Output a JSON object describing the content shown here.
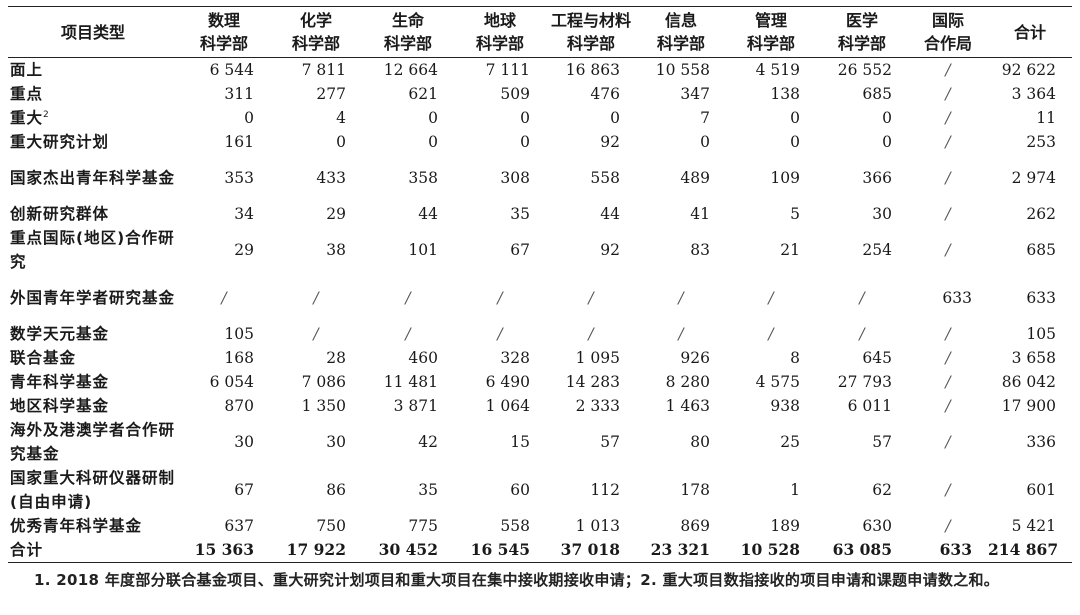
{
  "table": {
    "headers": [
      {
        "line1": "项目类型",
        "line2": ""
      },
      {
        "line1": "数理",
        "line2": "科学部"
      },
      {
        "line1": "化学",
        "line2": "科学部"
      },
      {
        "line1": "生命",
        "line2": "科学部"
      },
      {
        "line1": "地球",
        "line2": "科学部"
      },
      {
        "line1": "工程与材料",
        "line2": "科学部"
      },
      {
        "line1": "信息",
        "line2": "科学部"
      },
      {
        "line1": "管理",
        "line2": "科学部"
      },
      {
        "line1": "医学",
        "line2": "科学部"
      },
      {
        "line1": "国际",
        "line2": "合作局"
      },
      {
        "line1": "合计",
        "line2": ""
      }
    ],
    "rows": [
      {
        "name": "面上",
        "sup": "",
        "tall": false,
        "values": [
          "6 544",
          "7 811",
          "12 664",
          "7 111",
          "16 863",
          "10 558",
          "4 519",
          "26 552",
          "/",
          "92 622"
        ]
      },
      {
        "name": "重点",
        "sup": "",
        "tall": false,
        "values": [
          "311",
          "277",
          "621",
          "509",
          "476",
          "347",
          "138",
          "685",
          "/",
          "3 364"
        ]
      },
      {
        "name": "重大",
        "sup": "2",
        "tall": false,
        "values": [
          "0",
          "4",
          "0",
          "0",
          "0",
          "7",
          "0",
          "0",
          "/",
          "11"
        ]
      },
      {
        "name": "重大研究计划",
        "sup": "",
        "tall": false,
        "values": [
          "161",
          "0",
          "0",
          "0",
          "92",
          "0",
          "0",
          "0",
          "/",
          "253"
        ]
      },
      {
        "name": "国家杰出青年科学基金",
        "sup": "",
        "tall": true,
        "values": [
          "353",
          "433",
          "358",
          "308",
          "558",
          "489",
          "109",
          "366",
          "/",
          "2 974"
        ]
      },
      {
        "name": "创新研究群体",
        "sup": "",
        "tall": false,
        "values": [
          "34",
          "29",
          "44",
          "35",
          "44",
          "41",
          "5",
          "30",
          "/",
          "262"
        ]
      },
      {
        "name": "重点国际(地区)合作研究",
        "sup": "",
        "tall": true,
        "values": [
          "29",
          "38",
          "101",
          "67",
          "92",
          "83",
          "21",
          "254",
          "/",
          "685"
        ]
      },
      {
        "name": "外国青年学者研究基金",
        "sup": "",
        "tall": true,
        "values": [
          "/",
          "/",
          "/",
          "/",
          "/",
          "/",
          "/",
          "/",
          "633",
          "633"
        ]
      },
      {
        "name": "数学天元基金",
        "sup": "",
        "tall": false,
        "values": [
          "105",
          "/",
          "/",
          "/",
          "/",
          "/",
          "/",
          "/",
          "/",
          "105"
        ]
      },
      {
        "name": "联合基金",
        "sup": "",
        "tall": false,
        "values": [
          "168",
          "28",
          "460",
          "328",
          "1 095",
          "926",
          "8",
          "645",
          "/",
          "3 658"
        ]
      },
      {
        "name": "青年科学基金",
        "sup": "",
        "tall": false,
        "values": [
          "6 054",
          "7 086",
          "11 481",
          "6 490",
          "14 283",
          "8 280",
          "4 575",
          "27 793",
          "/",
          "86 042"
        ]
      },
      {
        "name": "地区科学基金",
        "sup": "",
        "tall": false,
        "values": [
          "870",
          "1 350",
          "3 871",
          "1 064",
          "2 333",
          "1 463",
          "938",
          "6 011",
          "/",
          "17 900"
        ]
      },
      {
        "name": "海外及港澳学者合作研究基金",
        "sup": "",
        "tall": true,
        "values": [
          "30",
          "30",
          "42",
          "15",
          "57",
          "80",
          "25",
          "57",
          "/",
          "336"
        ]
      },
      {
        "name": "国家重大科研仪器研制(自由申请)",
        "sup": "",
        "tall": true,
        "values": [
          "67",
          "86",
          "35",
          "60",
          "112",
          "178",
          "1",
          "62",
          "/",
          "601"
        ]
      },
      {
        "name": "优秀青年科学基金",
        "sup": "",
        "tall": false,
        "values": [
          "637",
          "750",
          "775",
          "558",
          "1 013",
          "869",
          "189",
          "630",
          "/",
          "5 421"
        ]
      }
    ],
    "total": {
      "name": "合计",
      "values": [
        "15 363",
        "17 922",
        "30 452",
        "16 545",
        "37 018",
        "23 321",
        "10 528",
        "63 085",
        "633",
        "214 867"
      ]
    }
  },
  "footnote": "1. 2018 年度部分联合基金项目、重大研究计划项目和重大项目在集中接收期接收申请；2. 重大项目数指接收的项目申请和课题申请数之和。"
}
